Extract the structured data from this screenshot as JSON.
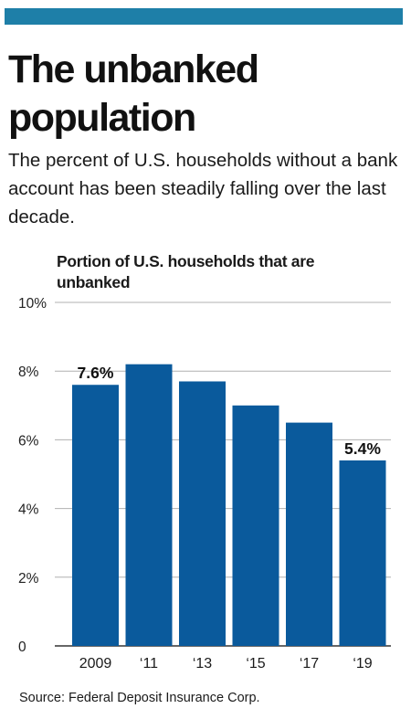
{
  "header": {
    "title": "The unbanked population",
    "subtitle": "The percent of U.S. households without a bank account has been steadily falling over the last decade.",
    "accent_color": "#1e7fa8"
  },
  "chart_data": {
    "type": "bar",
    "title": "Portion of U.S. households that are unbanked",
    "categories": [
      "2009",
      "‘11",
      "‘13",
      "‘15",
      "‘17",
      "‘19"
    ],
    "values": [
      7.6,
      8.2,
      7.7,
      7.0,
      6.5,
      5.4
    ],
    "data_labels": [
      "7.6%",
      "",
      "",
      "",
      "",
      "5.4%"
    ],
    "y_ticks": [
      {
        "value": 0,
        "label": "0"
      },
      {
        "value": 2,
        "label": "2%"
      },
      {
        "value": 4,
        "label": "4%"
      },
      {
        "value": 6,
        "label": "6%"
      },
      {
        "value": 8,
        "label": "8%"
      },
      {
        "value": 10,
        "label": "10%"
      }
    ],
    "ylim": [
      0,
      10
    ],
    "xlabel": "",
    "ylabel": "",
    "grid": true,
    "bar_color": "#0a5a9c",
    "grid_color": "#b0b0b0"
  },
  "footer": {
    "source": "Source: Federal Deposit Insurance Corp."
  }
}
